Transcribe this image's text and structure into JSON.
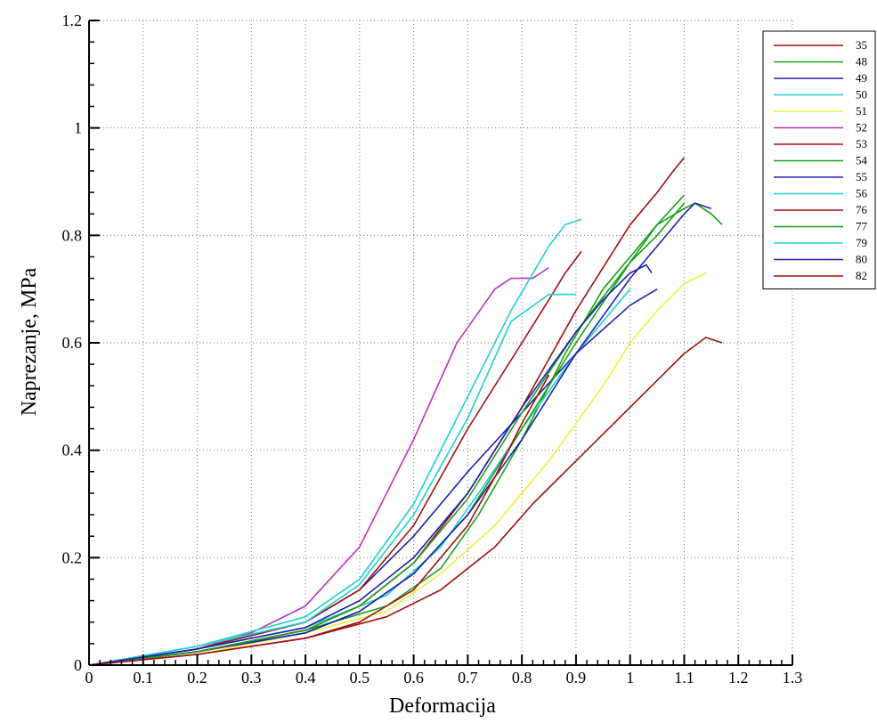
{
  "chart_data": {
    "type": "line",
    "title": "",
    "xlabel": "Deformacija",
    "ylabel": "Naprezanje, MPa",
    "xlim": [
      0,
      1.3
    ],
    "ylim": [
      0,
      1.2
    ],
    "xticks": [
      "0",
      "0.1",
      "0.2",
      "0.3",
      "0.4",
      "0.5",
      "0.6",
      "0.7",
      "0.8",
      "0.9",
      "1",
      "1.1",
      "1.2",
      "1.3"
    ],
    "yticks": [
      "0",
      "0.2",
      "0.4",
      "0.6",
      "0.8",
      "1",
      "1.2"
    ],
    "grid": true,
    "legend_position": "top-right",
    "series": [
      {
        "name": "35",
        "color": "#a01010",
        "x": [
          0,
          0.2,
          0.4,
          0.55,
          0.65,
          0.75,
          0.82,
          0.9,
          1.0,
          1.1,
          1.14,
          1.17
        ],
        "y": [
          0,
          0.02,
          0.05,
          0.09,
          0.14,
          0.22,
          0.3,
          0.38,
          0.48,
          0.58,
          0.61,
          0.6
        ]
      },
      {
        "name": "48",
        "color": "#1aa01a",
        "x": [
          0,
          0.2,
          0.4,
          0.55,
          0.65,
          0.72,
          0.8,
          0.88,
          0.95,
          1.05,
          1.1,
          1.12,
          1.15,
          1.17
        ],
        "y": [
          0,
          0.025,
          0.065,
          0.11,
          0.18,
          0.28,
          0.42,
          0.58,
          0.7,
          0.82,
          0.85,
          0.86,
          0.84,
          0.82
        ]
      },
      {
        "name": "49",
        "color": "#2020b0",
        "x": [
          0,
          0.2,
          0.4,
          0.5,
          0.6,
          0.7,
          0.8,
          0.9,
          1.0,
          1.05
        ],
        "y": [
          0,
          0.03,
          0.08,
          0.14,
          0.24,
          0.36,
          0.47,
          0.58,
          0.67,
          0.7
        ]
      },
      {
        "name": "50",
        "color": "#20d0d0",
        "x": [
          0,
          0.2,
          0.4,
          0.55,
          0.65,
          0.72,
          0.8,
          0.9,
          0.95,
          1.0
        ],
        "y": [
          0,
          0.03,
          0.07,
          0.13,
          0.22,
          0.32,
          0.44,
          0.58,
          0.64,
          0.7
        ]
      },
      {
        "name": "51",
        "color": "#f0f040",
        "x": [
          0,
          0.2,
          0.4,
          0.55,
          0.65,
          0.75,
          0.85,
          0.95,
          1.0,
          1.05,
          1.1,
          1.14
        ],
        "y": [
          0,
          0.02,
          0.06,
          0.1,
          0.17,
          0.26,
          0.38,
          0.52,
          0.6,
          0.66,
          0.71,
          0.73
        ]
      },
      {
        "name": "52",
        "color": "#c030c0",
        "x": [
          0,
          0.2,
          0.3,
          0.4,
          0.5,
          0.6,
          0.68,
          0.75,
          0.78,
          0.82,
          0.85
        ],
        "y": [
          0,
          0.03,
          0.06,
          0.11,
          0.22,
          0.42,
          0.6,
          0.7,
          0.72,
          0.72,
          0.74
        ]
      },
      {
        "name": "53",
        "color": "#a01010",
        "x": [
          0,
          0.2,
          0.4,
          0.5,
          0.6,
          0.7,
          0.8,
          0.9,
          1.0,
          1.05,
          1.08,
          1.1
        ],
        "y": [
          0,
          0.025,
          0.065,
          0.11,
          0.19,
          0.32,
          0.48,
          0.66,
          0.82,
          0.88,
          0.92,
          0.945
        ]
      },
      {
        "name": "54",
        "color": "#1aa01a",
        "x": [
          0,
          0.2,
          0.4,
          0.5,
          0.6,
          0.7,
          0.8,
          0.9,
          1.0,
          1.05,
          1.1
        ],
        "y": [
          0,
          0.025,
          0.06,
          0.1,
          0.17,
          0.28,
          0.44,
          0.6,
          0.75,
          0.82,
          0.875
        ]
      },
      {
        "name": "55",
        "color": "#2020b0",
        "x": [
          0,
          0.2,
          0.4,
          0.5,
          0.6,
          0.7,
          0.8,
          0.9,
          1.0,
          1.1,
          1.12,
          1.15
        ],
        "y": [
          0,
          0.025,
          0.06,
          0.1,
          0.17,
          0.28,
          0.42,
          0.58,
          0.72,
          0.84,
          0.86,
          0.85
        ]
      },
      {
        "name": "56",
        "color": "#20d0d0",
        "x": [
          0,
          0.2,
          0.4,
          0.5,
          0.6,
          0.7,
          0.78,
          0.85,
          0.88,
          0.91
        ],
        "y": [
          0,
          0.035,
          0.09,
          0.16,
          0.3,
          0.5,
          0.66,
          0.78,
          0.82,
          0.83
        ]
      },
      {
        "name": "76",
        "color": "#a01010",
        "x": [
          0,
          0.2,
          0.4,
          0.5,
          0.6,
          0.7,
          0.8,
          0.85,
          0.88,
          0.91
        ],
        "y": [
          0,
          0.03,
          0.08,
          0.14,
          0.26,
          0.44,
          0.6,
          0.68,
          0.73,
          0.77
        ]
      },
      {
        "name": "77",
        "color": "#1aa01a",
        "x": [
          0,
          0.2,
          0.4,
          0.5,
          0.6,
          0.7,
          0.8,
          0.9,
          1.0,
          1.05,
          1.1
        ],
        "y": [
          0,
          0.025,
          0.065,
          0.11,
          0.19,
          0.31,
          0.47,
          0.62,
          0.75,
          0.8,
          0.86
        ]
      },
      {
        "name": "79",
        "color": "#20d0d0",
        "x": [
          0,
          0.2,
          0.4,
          0.5,
          0.6,
          0.7,
          0.78,
          0.85,
          0.9
        ],
        "y": [
          0,
          0.035,
          0.08,
          0.15,
          0.28,
          0.46,
          0.64,
          0.69,
          0.69
        ]
      },
      {
        "name": "80",
        "color": "#2020b0",
        "x": [
          0,
          0.2,
          0.4,
          0.5,
          0.6,
          0.7,
          0.8,
          0.9,
          0.95,
          1.0,
          1.03,
          1.04
        ],
        "y": [
          0,
          0.03,
          0.07,
          0.12,
          0.2,
          0.32,
          0.48,
          0.62,
          0.68,
          0.73,
          0.745,
          0.73
        ]
      },
      {
        "name": "82",
        "color": "#a01010",
        "x": [
          0,
          0.2,
          0.4,
          0.5,
          0.6,
          0.7,
          0.75,
          0.8,
          0.85
        ],
        "y": [
          0,
          0.02,
          0.05,
          0.08,
          0.14,
          0.26,
          0.35,
          0.45,
          0.54
        ]
      }
    ]
  }
}
